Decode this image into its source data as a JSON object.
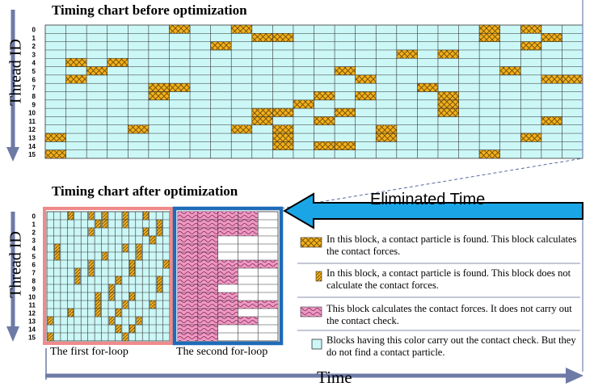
{
  "titles": {
    "before": "Timing chart before optimization",
    "after": "Timing chart after optimization"
  },
  "axes": {
    "thread_label": "Thread ID",
    "time_label": "Time",
    "thread_ids": [
      "0",
      "1",
      "2",
      "3",
      "4",
      "5",
      "6",
      "7",
      "8",
      "9",
      "10",
      "11",
      "12",
      "13",
      "14",
      "15"
    ]
  },
  "eliminated_label": "Eliminated Time",
  "loops": {
    "first": "The first for-loop",
    "second": "The second for-loop"
  },
  "legend": [
    {
      "key": "found_calc",
      "text": "In this block, a contact particle is found. This block calculates the contact forces."
    },
    {
      "key": "found_nocalc",
      "text": "In this block, a contact particle is found. This block does not calculate the contact forces."
    },
    {
      "key": "calc_only",
      "text": "This block calculates the contact forces. It does not carry out the contact check."
    },
    {
      "key": "check_only",
      "text": "Blocks having this color carry out the contact check. But they do not find a contact particle."
    }
  ],
  "colors": {
    "check": "#ccf7f7",
    "found": "#f2b01e",
    "wave": "#e784b6",
    "first_box": "#f08a8a",
    "second_box": "#1e6bb8",
    "arrow_blue": "#1aa6e6",
    "axis_arrow": "#6e7aa6"
  },
  "before_chart": {
    "columns": 26,
    "rows": 16,
    "found_blocks": [
      [
        0,
        6
      ],
      [
        0,
        9
      ],
      [
        0,
        21
      ],
      [
        0,
        23
      ],
      [
        1,
        10
      ],
      [
        1,
        11
      ],
      [
        1,
        21
      ],
      [
        1,
        24
      ],
      [
        2,
        8
      ],
      [
        2,
        23
      ],
      [
        3,
        17
      ],
      [
        3,
        19
      ],
      [
        4,
        1
      ],
      [
        4,
        3
      ],
      [
        5,
        2
      ],
      [
        5,
        14
      ],
      [
        5,
        22
      ],
      [
        6,
        1
      ],
      [
        6,
        15
      ],
      [
        6,
        24
      ],
      [
        6,
        25
      ],
      [
        7,
        5
      ],
      [
        7,
        6
      ],
      [
        7,
        18
      ],
      [
        8,
        5
      ],
      [
        8,
        13
      ],
      [
        8,
        15
      ],
      [
        8,
        19
      ],
      [
        9,
        12
      ],
      [
        9,
        19
      ],
      [
        10,
        10
      ],
      [
        10,
        11
      ],
      [
        10,
        14
      ],
      [
        10,
        19
      ],
      [
        11,
        10
      ],
      [
        11,
        13
      ],
      [
        11,
        24
      ],
      [
        12,
        4
      ],
      [
        12,
        9
      ],
      [
        12,
        11
      ],
      [
        12,
        16
      ],
      [
        13,
        0
      ],
      [
        13,
        11
      ],
      [
        13,
        16
      ],
      [
        13,
        23
      ],
      [
        14,
        11
      ],
      [
        14,
        13
      ],
      [
        14,
        14
      ],
      [
        15,
        0
      ],
      [
        15,
        21
      ]
    ]
  },
  "after_first": {
    "columns": 18,
    "rows": 16,
    "found_blocks": [
      [
        0,
        3
      ],
      [
        0,
        6
      ],
      [
        0,
        8
      ],
      [
        0,
        11
      ],
      [
        0,
        14
      ],
      [
        1,
        7
      ],
      [
        1,
        8
      ],
      [
        1,
        11
      ],
      [
        1,
        16
      ],
      [
        2,
        6
      ],
      [
        2,
        14
      ],
      [
        2,
        16
      ],
      [
        3,
        15
      ],
      [
        4,
        1
      ],
      [
        4,
        11
      ],
      [
        4,
        13
      ],
      [
        5,
        1
      ],
      [
        5,
        8
      ],
      [
        5,
        13
      ],
      [
        6,
        6
      ],
      [
        6,
        12
      ],
      [
        6,
        17
      ],
      [
        7,
        4
      ],
      [
        7,
        6
      ],
      [
        7,
        12
      ],
      [
        8,
        4
      ],
      [
        8,
        10
      ],
      [
        8,
        16
      ],
      [
        9,
        9
      ],
      [
        9,
        16
      ],
      [
        10,
        7
      ],
      [
        10,
        9
      ],
      [
        10,
        12
      ],
      [
        11,
        7
      ],
      [
        11,
        11
      ],
      [
        11,
        15
      ],
      [
        12,
        3
      ],
      [
        12,
        7
      ],
      [
        12,
        10
      ],
      [
        13,
        0
      ],
      [
        13,
        9
      ],
      [
        13,
        13
      ],
      [
        14,
        10
      ],
      [
        14,
        12
      ],
      [
        15,
        0
      ],
      [
        15,
        11
      ]
    ]
  },
  "after_second": {
    "columns": 5,
    "rows": 16,
    "wave_lengths": [
      4,
      4,
      4,
      2,
      2,
      2,
      5,
      3,
      3,
      2,
      3,
      5,
      3,
      4,
      2,
      2
    ]
  }
}
